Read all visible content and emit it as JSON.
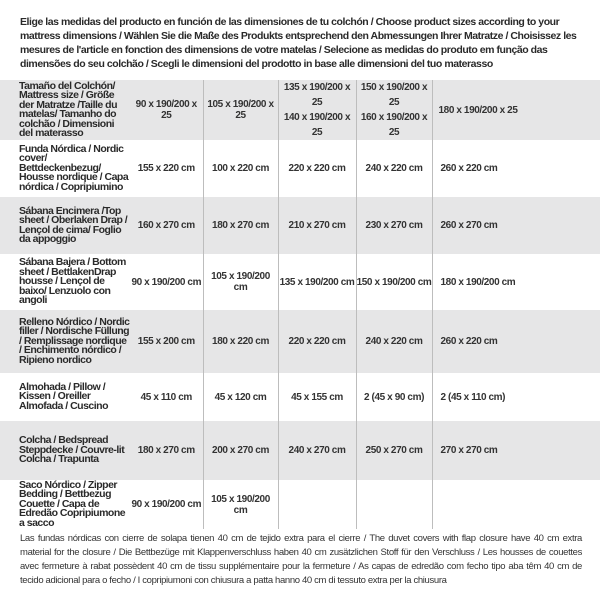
{
  "intro": "Elige las medidas del producto en función de las dimensiones de tu colchón / Choose product sizes according to your mattress dimensions / Wählen Sie die Maße des Produkts entsprechend den Abmessungen Ihrer Matratze / Choisissez les mesures de l'article en fonction des dimensions de votre matelas / Selecione as medidas do produto em função das dimensões do seu colchão / Scegli le dimensioni del prodotto in base alle dimensioni del tuo materasso",
  "header": {
    "label": "Tamaño del Colchón/ Mattress size / Größe der Matratze /Taille du matelas/ Tamanho do colchão / Dimensioni del materasso",
    "sizes": [
      "90 x 190/200 x 25",
      "105 x 190/200 x 25",
      "135 x 190/200 x 25",
      "150 x 190/200 x 25",
      "180 x 190/200 x 25"
    ],
    "sizes_alt": [
      "",
      "",
      "140 x 190/200 x 25",
      "160 x 190/200 x 25",
      ""
    ]
  },
  "rows": [
    {
      "label": "Funda Nórdica / Nordic cover/ Bettdeckenbezug/ Housse nordique / Capa nórdica / Copripiumino",
      "values": [
        "155 x 220 cm",
        "100 x 220 cm",
        "220 x 220 cm",
        "240 x 220 cm",
        "260 x 220 cm"
      ]
    },
    {
      "label": "Sábana Encimera /Top sheet / Oberlaken Drap / Lençol de cima/ Foglio da appoggio",
      "values": [
        "160 x 270 cm",
        "180 x 270 cm",
        "210 x 270 cm",
        "230 x 270 cm",
        "260 x 270 cm"
      ]
    },
    {
      "label": "Sábana Bajera / Bottom sheet / BettlakenDrap housse / Lençol de baixo/ Lenzuolo con angoli",
      "values": [
        "90 x 190/200 cm",
        "105 x 190/200 cm",
        "135 x 190/200 cm",
        "150 x 190/200 cm",
        "180 x 190/200 cm"
      ]
    },
    {
      "label": "Relleno Nórdico / Nordic filler / Nordische Füllung / Remplissage nordique / Enchimento nórdico / Ripieno nordico",
      "values": [
        "155 x 200 cm",
        "180 x 220 cm",
        "220 x 220 cm",
        "240 x 220 cm",
        "260 x 220 cm"
      ]
    },
    {
      "label": "Almohada / Pillow / Kissen / Oreiller Almofada / Cuscino",
      "values": [
        "45 x 110 cm",
        "45 x 120 cm",
        "45 x 155 cm",
        "2 (45 x 90 cm)",
        "2 (45 x 110 cm)"
      ]
    },
    {
      "label": "Colcha / Bedspread Steppdecke / Couvre-lit Colcha / Trapunta",
      "values": [
        "180 x 270 cm",
        "200 x 270 cm",
        "240 x 270 cm",
        "250 x 270 cm",
        "270 x 270 cm"
      ]
    },
    {
      "label": "Saco Nórdico / Zipper Bedding / Bettbezug Couette / Capa de Edredão Copripiumone a sacco",
      "values": [
        "90 x 190/200 cm",
        "105 x 190/200 cm",
        "",
        "",
        ""
      ]
    }
  ],
  "footnote": "Las fundas nórdicas con cierre de solapa tienen 40 cm de tejido extra para el cierre / The duvet covers with flap closure have 40 cm extra material for the closure / Die Bettbezüge mit Klappenverschluss haben 40 cm zusätzlichen Stoff für den Verschluss / Les housses de couettes avec fermeture à rabat possèdent 40 cm de tissu supplémentaire pour la fermeture / As capas de edredão com fecho tipo aba têm 40 cm de tecido adicional para o fecho / I copripiumoni con chiusura a patta hanno 40 cm di tessuto extra per la chiusura",
  "colors": {
    "stripe": "#e6e6e7",
    "divider": "#bdbdbd",
    "text": "#333333"
  }
}
